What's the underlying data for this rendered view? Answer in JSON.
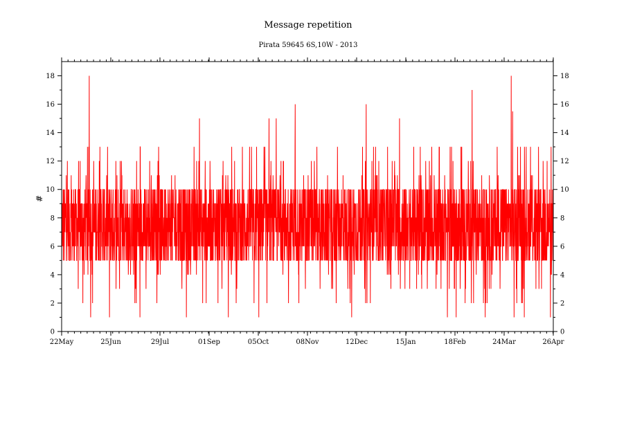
{
  "chart_data": {
    "type": "line",
    "title": "Message repetition",
    "subtitle": "Pirata 59645 6S,10W - 2013",
    "xlabel": "",
    "ylabel": "#",
    "ylim": [
      0,
      19
    ],
    "yticks": [
      0,
      2,
      4,
      6,
      8,
      10,
      12,
      14,
      16,
      18
    ],
    "xlim": [
      "2013-05-22",
      "2014-04-26"
    ],
    "xticks": [
      "22May",
      "25Jun",
      "29Jul",
      "01Sep",
      "05Oct",
      "08Nov",
      "12Dec",
      "15Jan",
      "18Feb",
      "24Mar",
      "26Apr"
    ],
    "grid": false,
    "line_color": "#ff0000",
    "series": [
      {
        "typical_range": [
          5,
          10
        ],
        "peaks": [
          {
            "x": "2013-06-10",
            "y": 18
          },
          {
            "x": "2013-06-11",
            "y": 14.5
          },
          {
            "x": "2013-08-25",
            "y": 15
          },
          {
            "x": "2013-10-12",
            "y": 15
          },
          {
            "x": "2013-10-17",
            "y": 15
          },
          {
            "x": "2013-10-30",
            "y": 16
          },
          {
            "x": "2013-12-18",
            "y": 16
          },
          {
            "x": "2014-01-10",
            "y": 15
          },
          {
            "x": "2014-03-01",
            "y": 17
          },
          {
            "x": "2014-03-28",
            "y": 18
          },
          {
            "x": "2014-03-29",
            "y": 15.5
          }
        ],
        "troughs": [
          {
            "x": "2013-06-11",
            "y": 1
          },
          {
            "x": "2013-06-24",
            "y": 1
          },
          {
            "x": "2013-07-15",
            "y": 1
          },
          {
            "x": "2013-08-16",
            "y": 1
          },
          {
            "x": "2013-09-14",
            "y": 1
          },
          {
            "x": "2013-10-05",
            "y": 1
          },
          {
            "x": "2013-12-08",
            "y": 1
          },
          {
            "x": "2014-02-12",
            "y": 1
          },
          {
            "x": "2014-02-18",
            "y": 1
          },
          {
            "x": "2014-03-10",
            "y": 1
          },
          {
            "x": "2014-03-30",
            "y": 1
          },
          {
            "x": "2014-04-06",
            "y": 1
          },
          {
            "x": "2014-04-24",
            "y": 1
          }
        ]
      }
    ]
  }
}
